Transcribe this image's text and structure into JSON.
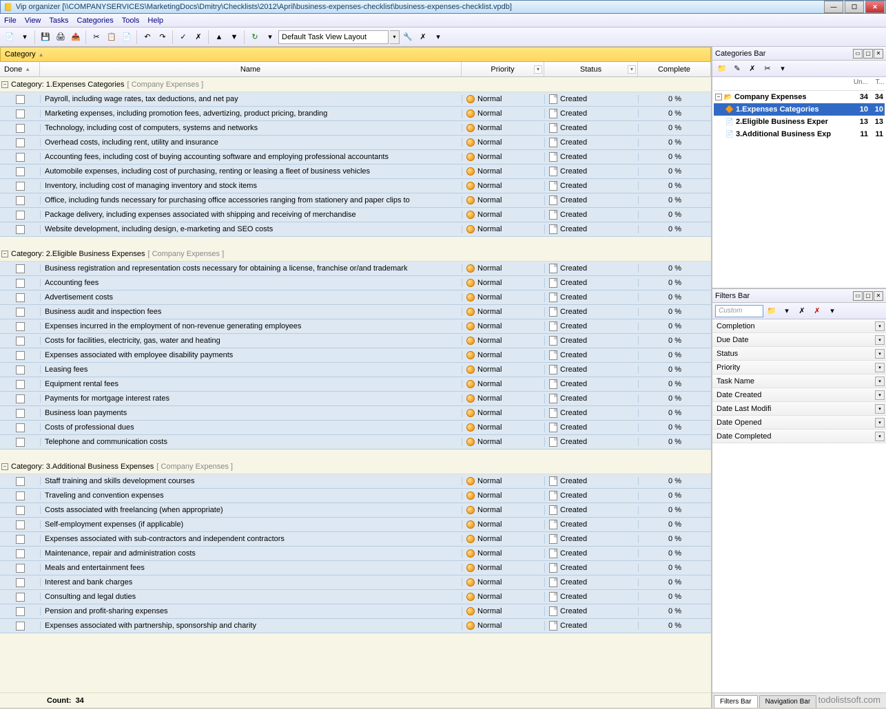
{
  "titlebar": "Vip organizer [\\\\COMPANYSERVICES\\MarketingDocs\\Dmitry\\Checklists\\2012\\April\\business-expenses-checklist\\business-expenses-checklist.vpdb]",
  "menu": [
    "File",
    "View",
    "Tasks",
    "Categories",
    "Tools",
    "Help"
  ],
  "layout_dropdown": "Default Task View Layout",
  "group_by": "Category",
  "columns": {
    "done": "Done",
    "name": "Name",
    "priority": "Priority",
    "status": "Status",
    "complete": "Complete"
  },
  "default_priority": "Normal",
  "default_status": "Created",
  "default_complete": "0 %",
  "groups": [
    {
      "label": "Category: 1.Expenses Categories",
      "parent": "[ Company Expenses ]",
      "tasks": [
        "Payroll, including wage rates, tax deductions, and net pay",
        "Marketing expenses, including promotion fees, advertizing, product pricing, branding",
        "Technology, including cost of computers, systems and networks",
        "Overhead costs, including rent, utility and insurance",
        "Accounting fees, including cost of buying accounting software and employing professional accountants",
        "Automobile expenses, including cost of purchasing, renting or leasing a fleet of business vehicles",
        "Inventory, including cost of managing inventory and stock items",
        "Office, including funds necessary for purchasing office accessories ranging from stationery and paper clips to",
        "Package delivery, including expenses associated with shipping and receiving of merchandise",
        "Website development, including design, e-marketing and SEO costs"
      ]
    },
    {
      "label": "Category: 2.Eligible Business Expenses",
      "parent": "[ Company Expenses ]",
      "tasks": [
        "Business registration and representation costs necessary for obtaining a license, franchise or/and trademark",
        "Accounting fees",
        "Advertisement costs",
        "Business audit and inspection fees",
        "Expenses incurred in the employment of non-revenue generating employees",
        "Costs for facilities, electricity, gas, water and heating",
        "Expenses associated with employee disability payments",
        "Leasing fees",
        "Equipment rental fees",
        "Payments for mortgage interest rates",
        "Business loan payments",
        "Costs of professional dues",
        "Telephone and communication costs"
      ]
    },
    {
      "label": "Category: 3.Additional Business Expenses",
      "parent": "[ Company Expenses ]",
      "tasks": [
        "Staff training and skills development courses",
        "Traveling and convention expenses",
        "Costs associated with freelancing (when appropriate)",
        "Self-employment expenses (if applicable)",
        "Expenses associated with sub-contractors and independent contractors",
        "Maintenance, repair and administration costs",
        "Meals and entertainment fees",
        "Interest and bank charges",
        "Consulting and legal duties",
        "Pension and profit-sharing expenses",
        "Expenses associated with partnership, sponsorship and charity"
      ]
    }
  ],
  "count_label": "Count:",
  "count_value": "34",
  "categories_bar": {
    "title": "Categories Bar",
    "head_un": "Un...",
    "head_t": "T...",
    "root": {
      "label": "Company Expenses",
      "n1": "34",
      "n2": "34"
    },
    "items": [
      {
        "label": "1.Expenses Categories",
        "n1": "10",
        "n2": "10",
        "selected": true
      },
      {
        "label": "2.Eligible Business Exper",
        "n1": "13",
        "n2": "13",
        "selected": false
      },
      {
        "label": "3.Additional Business Exp",
        "n1": "11",
        "n2": "11",
        "selected": false
      }
    ]
  },
  "filters_bar": {
    "title": "Filters Bar",
    "custom": "Custom",
    "fields": [
      "Completion",
      "Due Date",
      "Status",
      "Priority",
      "Task Name",
      "Date Created",
      "Date Last Modifi",
      "Date Opened",
      "Date Completed"
    ]
  },
  "tabs": [
    "Filters Bar",
    "Navigation Bar"
  ],
  "watermark": "todolistsoft.com"
}
